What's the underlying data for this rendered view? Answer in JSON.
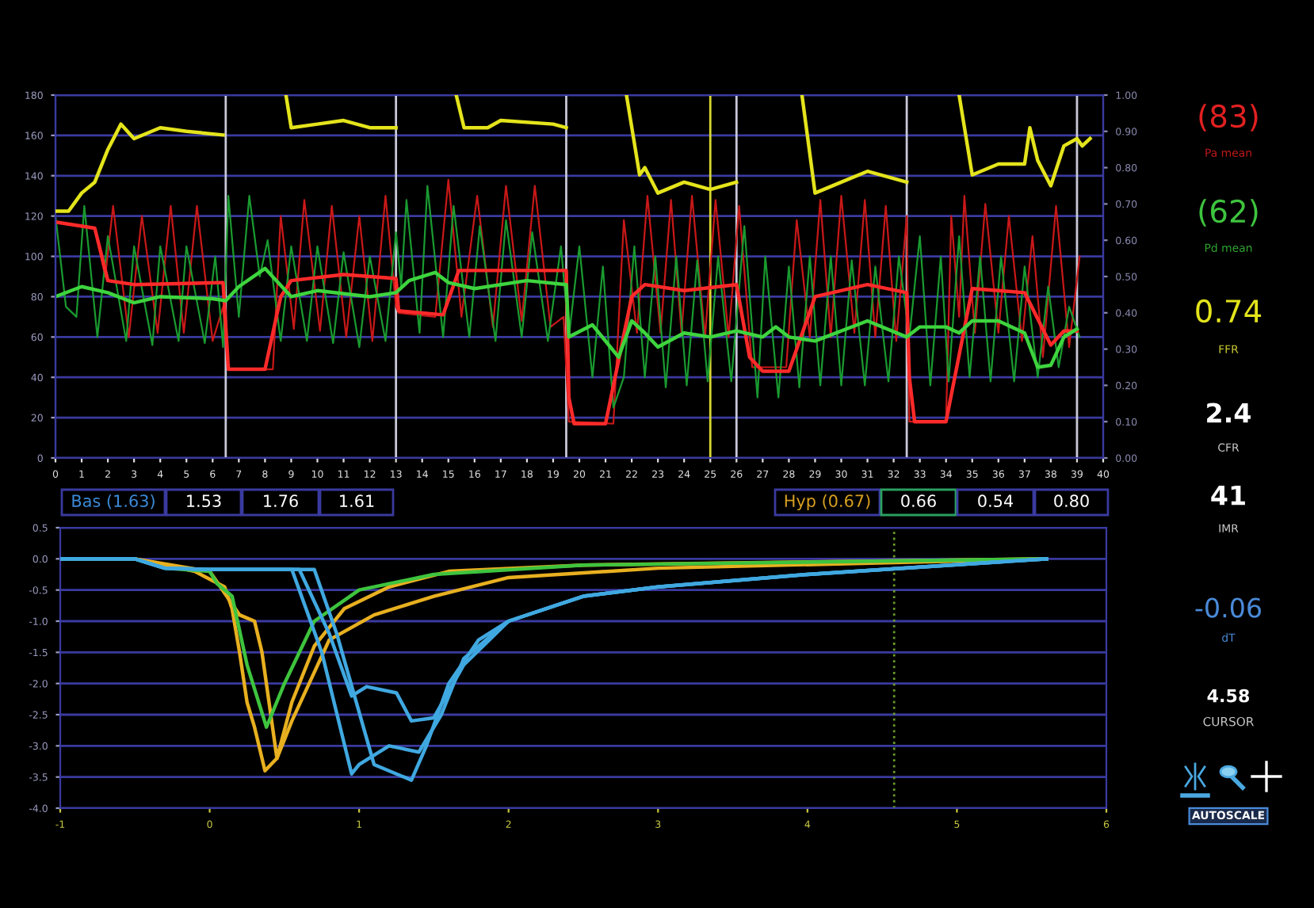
{
  "chart_data": [
    {
      "type": "line",
      "xlim": [
        0,
        40
      ],
      "xticks": [
        0,
        1,
        2,
        3,
        4,
        5,
        6,
        7,
        8,
        9,
        10,
        11,
        12,
        13,
        14,
        15,
        16,
        17,
        18,
        19,
        20,
        21,
        22,
        23,
        24,
        25,
        26,
        27,
        28,
        29,
        30,
        31,
        32,
        33,
        34,
        35,
        36,
        37,
        38,
        39,
        40
      ],
      "ylim": [
        0,
        180
      ],
      "yticks": [
        0,
        20,
        40,
        60,
        80,
        100,
        120,
        140,
        160,
        180
      ],
      "y2lim": [
        0,
        1
      ],
      "y2ticks": [
        {
          "value": 0,
          "label": "0.00"
        },
        {
          "value": 0.1,
          "label": "0.10"
        },
        {
          "value": 0.2,
          "label": "0.20"
        },
        {
          "value": 0.3,
          "label": "0.30"
        },
        {
          "value": 0.4,
          "label": "0.40"
        },
        {
          "value": 0.5,
          "label": "0.50"
        },
        {
          "value": 0.6,
          "label": "0.60"
        },
        {
          "value": 0.7,
          "label": "0.70"
        },
        {
          "value": 0.8,
          "label": "0.80"
        },
        {
          "value": 0.9,
          "label": "0.90"
        },
        {
          "value": 1,
          "label": "1.00"
        }
      ],
      "grid": "y",
      "marker": "none",
      "line_style": "solid",
      "series": [
        {
          "color": "#c81818",
          "x": [
            0,
            1.5,
            1.9,
            2.2,
            2.8,
            3.3,
            3.9,
            4.4,
            4.9,
            5.4,
            6.0,
            6.4,
            6.6,
            8.3,
            8.6,
            9.1,
            9.5,
            10.1,
            10.55,
            11.1,
            11.6,
            12.1,
            12.6,
            13.0,
            13.1,
            14.5,
            15.0,
            15.5,
            16.1,
            16.7,
            17.2,
            17.8,
            18.3,
            18.9,
            19.4,
            19.6,
            21.3,
            21.7,
            22.2,
            22.6,
            23.1,
            23.5,
            23.9,
            24.3,
            24.8,
            25.2,
            25.7,
            26.1,
            26.6,
            27.9,
            28.3,
            28.8,
            29.2,
            29.6,
            30.0,
            30.5,
            30.9,
            31.3,
            31.7,
            32.1,
            32.5,
            32.6,
            34.0,
            34.2,
            34.5,
            34.7,
            35.1,
            35.5,
            36.0,
            36.4,
            36.9,
            37.3,
            37.7,
            38.2,
            38.7,
            39.1
          ],
          "values": [
            117,
            114,
            90,
            125,
            60,
            120,
            62,
            125,
            62,
            125,
            58,
            75,
            44,
            44,
            120,
            64,
            128,
            63,
            125,
            60,
            120,
            58,
            130,
            75,
            72,
            70,
            138,
            70,
            130,
            65,
            135,
            68,
            135,
            65,
            70,
            18,
            17,
            118,
            62,
            130,
            62,
            128,
            62,
            130,
            60,
            128,
            60,
            125,
            45,
            45,
            118,
            60,
            128,
            60,
            130,
            62,
            128,
            60,
            125,
            58,
            120,
            18,
            18,
            120,
            70,
            130,
            62,
            126,
            62,
            120,
            58,
            110,
            50,
            125,
            55,
            100
          ]
        },
        {
          "color": "#1a9a30",
          "x": [
            0,
            0.4,
            0.8,
            1.1,
            1.6,
            2.0,
            2.7,
            3.0,
            3.7,
            4.0,
            4.7,
            5.0,
            5.7,
            6.1,
            6.4,
            6.6,
            7.0,
            7.4,
            7.8,
            8.1,
            8.6,
            9.0,
            9.6,
            10.0,
            10.6,
            11.0,
            11.6,
            12.0,
            12.6,
            13.0,
            13.2,
            13.4,
            13.9,
            14.2,
            14.8,
            15.2,
            15.8,
            16.2,
            16.8,
            17.2,
            17.8,
            18.2,
            18.8,
            19.3,
            19.6,
            20.0,
            20.5,
            20.9,
            21.3,
            21.7,
            22.1,
            22.5,
            22.9,
            23.3,
            23.7,
            24.1,
            24.5,
            24.9,
            25.3,
            25.8,
            26.3,
            26.8,
            27.1,
            27.6,
            28.0,
            28.4,
            28.8,
            29.2,
            29.6,
            30.0,
            30.4,
            30.9,
            31.3,
            31.8,
            32.2,
            32.6,
            33.0,
            33.4,
            33.8,
            34.1,
            34.5,
            34.9,
            35.3,
            35.7,
            36.1,
            36.6,
            37.0,
            37.5,
            37.9,
            38.3,
            38.7,
            39.1
          ],
          "values": [
            120,
            75,
            70,
            125,
            60,
            110,
            58,
            105,
            56,
            105,
            58,
            105,
            57,
            100,
            55,
            130,
            70,
            130,
            90,
            108,
            58,
            105,
            58,
            105,
            57,
            102,
            55,
            100,
            58,
            112,
            85,
            128,
            62,
            135,
            60,
            125,
            60,
            115,
            58,
            118,
            60,
            112,
            58,
            105,
            60,
            105,
            40,
            95,
            25,
            40,
            105,
            40,
            100,
            35,
            100,
            36,
            98,
            38,
            100,
            38,
            115,
            30,
            100,
            30,
            95,
            35,
            100,
            36,
            100,
            36,
            98,
            36,
            95,
            38,
            100,
            60,
            110,
            36,
            100,
            38,
            110,
            40,
            100,
            38,
            100,
            38,
            95,
            40,
            85,
            45,
            75,
            60
          ]
        },
        {
          "color": "#ff2a2a",
          "x": [
            0,
            1.5,
            2,
            3,
            6.4,
            6.6,
            8,
            8.6,
            9,
            11,
            13,
            13.1,
            14.8,
            15.4,
            16,
            19.5,
            19.6,
            19.8,
            21,
            22,
            22.5,
            24,
            26,
            26.5,
            27,
            28,
            29,
            31,
            32.5,
            32.6,
            32.8,
            34,
            35,
            36,
            37,
            38,
            38.5,
            39
          ],
          "values": [
            117,
            114,
            88,
            86,
            87,
            44,
            44,
            80,
            88,
            91,
            89,
            73,
            71,
            93,
            93,
            93,
            30,
            17,
            17,
            80,
            86,
            83,
            86,
            50,
            43,
            43,
            80,
            86,
            82,
            40,
            18,
            18,
            84,
            83,
            82,
            56,
            63,
            63
          ]
        },
        {
          "color": "#3ed43e",
          "x": [
            0,
            1,
            2,
            3,
            4,
            6,
            6.5,
            7,
            8,
            9,
            10,
            12,
            13,
            13.5,
            14.5,
            15,
            16,
            18,
            19.5,
            19.6,
            20.5,
            21.5,
            22,
            22.5,
            23,
            24,
            25,
            26,
            27,
            27.5,
            28,
            29,
            31,
            32.5,
            33,
            34,
            34.5,
            35,
            36,
            37,
            37.5,
            38,
            38.5,
            39
          ],
          "values": [
            80,
            85,
            82,
            77,
            80,
            79,
            78,
            85,
            94,
            80,
            83,
            80,
            82,
            88,
            92,
            87,
            84,
            88,
            86,
            60,
            66,
            50,
            68,
            62,
            55,
            62,
            60,
            63,
            60,
            65,
            60,
            58,
            68,
            60,
            65,
            65,
            62,
            68,
            68,
            62,
            45,
            46,
            60,
            64
          ]
        },
        {
          "color": "#e4e41c",
          "axis": "y2",
          "x": [
            0,
            0.5,
            1,
            1.5,
            2,
            2.5,
            3,
            4,
            5,
            6.4,
            6.5,
            8.8,
            9,
            10,
            11,
            12,
            13,
            13.1,
            15.3,
            15.6,
            16.5,
            17,
            19,
            19.5,
            19.6,
            21.8,
            22.3,
            22.5,
            23,
            24,
            25,
            26,
            26.1,
            28.5,
            29,
            30,
            31,
            32.5,
            32.6,
            34.5,
            35,
            36,
            37,
            37.2,
            37.5,
            38,
            38.5,
            39,
            39.2,
            39.5
          ],
          "values": [
            0.68,
            0.68,
            0.73,
            0.76,
            0.85,
            0.92,
            0.88,
            0.91,
            0.9,
            0.89,
            null,
            1.0,
            0.91,
            0.92,
            0.93,
            0.91,
            0.91,
            null,
            1.0,
            0.91,
            0.91,
            0.93,
            0.92,
            0.91,
            null,
            1.0,
            0.78,
            0.8,
            0.73,
            0.76,
            0.74,
            0.76,
            null,
            1.0,
            0.73,
            0.76,
            0.79,
            0.76,
            null,
            1.0,
            0.78,
            0.81,
            0.81,
            0.91,
            0.82,
            0.75,
            0.86,
            0.88,
            0.86,
            0.88
          ]
        }
      ],
      "ref_lines": [
        {
          "axis": "x",
          "value": 6.5,
          "color": "#c8c8d8"
        },
        {
          "axis": "x",
          "value": 13,
          "color": "#c8c8d8"
        },
        {
          "axis": "x",
          "value": 19.5,
          "color": "#c8c8d8"
        },
        {
          "axis": "x",
          "value": 25,
          "color": "#d8d830"
        },
        {
          "axis": "x",
          "value": 26,
          "color": "#c8c8d8"
        },
        {
          "axis": "x",
          "value": 32.5,
          "color": "#c8c8d8"
        },
        {
          "axis": "x",
          "value": 39,
          "color": "#c8c8d8"
        }
      ]
    },
    {
      "type": "line",
      "xlim": [
        -1,
        6
      ],
      "xticks": [
        -1,
        0,
        1,
        2,
        3,
        4,
        5,
        6
      ],
      "ylim": [
        -4.0,
        0.5
      ],
      "yticks": [
        {
          "value": 0.5,
          "label": "0.5"
        },
        {
          "value": 0,
          "label": "0.0"
        },
        {
          "value": -0.5,
          "label": "-0.5"
        },
        {
          "value": -1,
          "label": "-1.0"
        },
        {
          "value": -1.5,
          "label": "-1.5"
        },
        {
          "value": -2,
          "label": "-2.0"
        },
        {
          "value": -2.5,
          "label": "-2.5"
        },
        {
          "value": -3,
          "label": "-3.0"
        },
        {
          "value": -3.5,
          "label": "-3.5"
        },
        {
          "value": -4,
          "label": "-4.0"
        }
      ],
      "grid": "y",
      "marker": "none",
      "line_style": "solid",
      "series": [
        {
          "color": "#e8b020",
          "x": [
            -1,
            -0.5,
            -0.1,
            0.1,
            0.15,
            0.2,
            0.25,
            0.3,
            0.37,
            0.45,
            0.55,
            0.7,
            0.9,
            1.2,
            1.6,
            2.5,
            4,
            5.6
          ],
          "values": [
            0,
            0,
            -0.2,
            -0.45,
            -0.8,
            -1.5,
            -2.3,
            -2.7,
            -3.4,
            -3.2,
            -2.3,
            -1.4,
            -0.8,
            -0.45,
            -0.2,
            -0.1,
            -0.05,
            0
          ]
        },
        {
          "color": "#e8b020",
          "x": [
            -1,
            -0.5,
            0,
            0.2,
            0.3,
            0.35,
            0.45,
            0.55,
            0.8,
            1.1,
            1.5,
            2.0,
            3,
            5.6
          ],
          "values": [
            0,
            0,
            -0.2,
            -0.9,
            -1.0,
            -1.5,
            -3.2,
            -2.6,
            -1.3,
            -0.9,
            -0.6,
            -0.3,
            -0.15,
            0
          ]
        },
        {
          "color": "#3ec43e",
          "x": [
            -1,
            -0.5,
            -0.3,
            0,
            0.05,
            0.15,
            0.25,
            0.38,
            0.5,
            0.7,
            1.0,
            1.5,
            2.5,
            5.6
          ],
          "values": [
            0,
            0,
            -0.15,
            -0.2,
            -0.4,
            -0.6,
            -1.7,
            -2.7,
            -2.0,
            -1.0,
            -0.5,
            -0.25,
            -0.1,
            0
          ]
        },
        {
          "color": "#40a8e0",
          "x": [
            -1,
            -0.5,
            -0.3,
            0,
            0.55,
            0.75,
            0.95,
            1.0,
            1.2,
            1.4,
            1.55,
            1.7,
            2.0,
            2.5,
            3.0,
            4,
            5.6
          ],
          "values": [
            0,
            0,
            -0.15,
            -0.17,
            -0.17,
            -1.5,
            -3.45,
            -3.3,
            -3.0,
            -3.1,
            -2.5,
            -1.6,
            -1.0,
            -0.6,
            -0.45,
            -0.25,
            0
          ]
        },
        {
          "color": "#40a8e0",
          "x": [
            -1,
            -0.5,
            -0.3,
            0,
            0.6,
            0.8,
            0.95,
            1.05,
            1.25,
            1.35,
            1.5,
            1.7,
            2.0,
            2.5,
            3.0,
            4,
            5.6
          ],
          "values": [
            0,
            0,
            -0.15,
            -0.17,
            -0.17,
            -1.2,
            -2.2,
            -2.05,
            -2.15,
            -2.6,
            -2.55,
            -1.7,
            -1.0,
            -0.6,
            -0.45,
            -0.25,
            0
          ]
        },
        {
          "color": "#40a8e0",
          "x": [
            -1,
            -0.5,
            -0.3,
            0,
            0.7,
            0.85,
            1.1,
            1.35,
            1.45,
            1.6,
            1.8,
            2.0,
            2.5,
            3.0,
            4,
            5.6
          ],
          "values": [
            0,
            0,
            -0.15,
            -0.17,
            -0.17,
            -1.2,
            -3.3,
            -3.55,
            -3.0,
            -2.0,
            -1.3,
            -1.0,
            -0.6,
            -0.45,
            -0.25,
            0
          ]
        }
      ],
      "ref_lines": [
        {
          "axis": "x",
          "value": 4.58,
          "color": "#6a9a2a",
          "line_style": "dotted"
        }
      ],
      "annotations": [
        "Bas (1.63)",
        "1.53",
        "1.76",
        "1.61",
        "Hyp (0.67)",
        "0.66",
        "0.54",
        "0.80"
      ]
    },
    {
      "type": "other",
      "annotations": [
        "(83)",
        "Pa mean",
        "(62)",
        "Pd mean",
        "0.74",
        "FFR",
        "2.4",
        "CFR",
        "41",
        "IMR",
        "-0.06",
        "dT",
        "4.58",
        "CURSOR",
        "AUTOSCALE"
      ]
    }
  ]
}
